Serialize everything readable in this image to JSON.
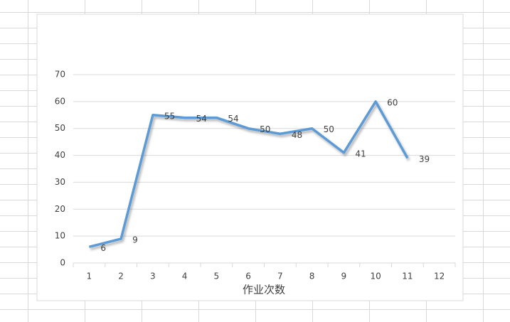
{
  "chart_data": {
    "type": "line",
    "x_label": "作业次数",
    "categories": [
      "1",
      "2",
      "3",
      "4",
      "5",
      "6",
      "7",
      "8",
      "9",
      "10",
      "11",
      "12"
    ],
    "series": [
      {
        "color": "#5b9bd5",
        "values": [
          6,
          9,
          55,
          54,
          54,
          50,
          48,
          50,
          41,
          60,
          39,
          null
        ]
      }
    ],
    "ylim": [
      0,
      70
    ],
    "yticks": [
      0,
      10,
      20,
      30,
      40,
      50,
      60,
      70
    ],
    "grid": true,
    "data_labels": true
  }
}
